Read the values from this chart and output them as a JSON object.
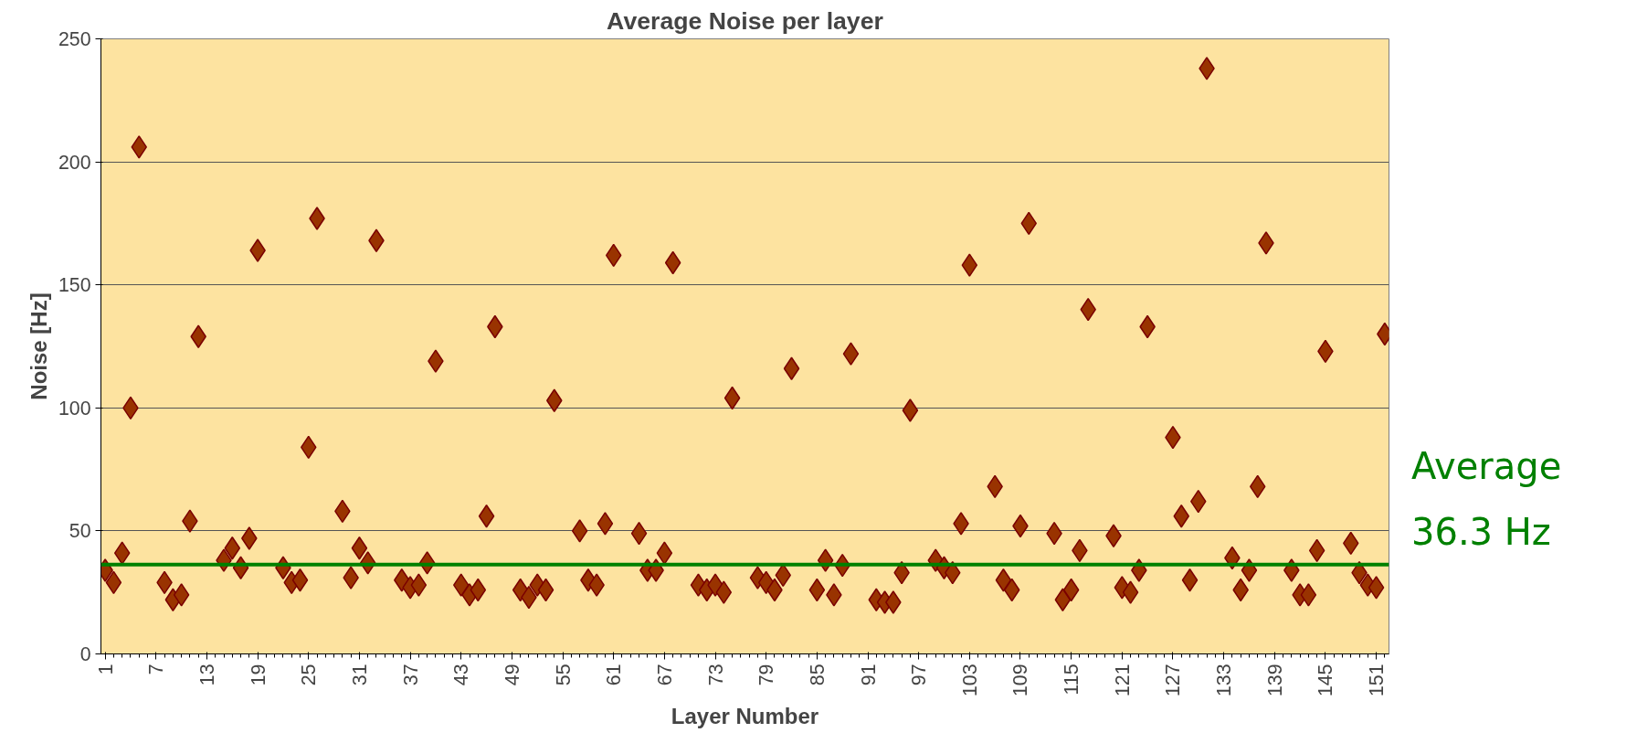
{
  "chart_data": {
    "type": "scatter",
    "title": "Average Noise per layer",
    "xlabel": "Layer Number",
    "ylabel": "Noise [Hz]",
    "xlim": [
      0.5,
      152.5
    ],
    "xticks": [
      1,
      7,
      13,
      19,
      25,
      31,
      37,
      43,
      49,
      55,
      61,
      67,
      73,
      79,
      85,
      91,
      97,
      103,
      109,
      115,
      121,
      127,
      133,
      139,
      145,
      151
    ],
    "ylim": [
      0,
      250
    ],
    "yticks": [
      0,
      50,
      100,
      150,
      200,
      250
    ],
    "grid": "y",
    "marker": "diamond",
    "series": [
      {
        "color": "#993300",
        "x": [
          1,
          2,
          3,
          4,
          5,
          8,
          9,
          10,
          11,
          12,
          15,
          16,
          17,
          18,
          19,
          22,
          23,
          24,
          25,
          26,
          29,
          30,
          31,
          32,
          33,
          36,
          37,
          38,
          39,
          40,
          43,
          44,
          45,
          46,
          47,
          50,
          51,
          52,
          53,
          54,
          57,
          58,
          59,
          60,
          61,
          64,
          65,
          66,
          67,
          68,
          71,
          72,
          73,
          74,
          75,
          78,
          79,
          80,
          81,
          82,
          85,
          86,
          87,
          88,
          89,
          92,
          93,
          94,
          95,
          96,
          99,
          100,
          101,
          102,
          103,
          106,
          107,
          108,
          109,
          110,
          113,
          114,
          115,
          116,
          117,
          120,
          121,
          122,
          123,
          124,
          127,
          128,
          129,
          130,
          131,
          134,
          135,
          136,
          137,
          138,
          141,
          142,
          143,
          144,
          145,
          148,
          149,
          150,
          151,
          152
        ],
        "values": [
          34,
          29,
          41,
          100,
          206,
          29,
          22,
          24,
          54,
          129,
          38,
          43,
          35,
          47,
          164,
          35,
          29,
          30,
          84,
          177,
          58,
          31,
          43,
          37,
          168,
          30,
          27,
          28,
          37,
          119,
          28,
          24,
          26,
          56,
          133,
          26,
          23,
          28,
          26,
          103,
          50,
          30,
          28,
          53,
          162,
          49,
          34,
          34,
          41,
          159,
          28,
          26,
          28,
          25,
          104,
          31,
          29,
          26,
          32,
          116,
          26,
          38,
          24,
          36,
          122,
          22,
          21,
          21,
          33,
          99,
          38,
          35,
          33,
          53,
          158,
          68,
          30,
          26,
          52,
          175,
          49,
          22,
          26,
          42,
          140,
          48,
          27,
          25,
          34,
          133,
          88,
          56,
          30,
          62,
          238,
          39,
          26,
          34,
          68,
          167,
          34,
          24,
          24,
          42,
          123,
          45,
          33,
          28,
          27,
          130
        ]
      }
    ],
    "ref_lines": [
      {
        "axis": "y",
        "value": 36.3,
        "label": "Average 36.3 Hz",
        "color": "#008000"
      }
    ]
  }
}
